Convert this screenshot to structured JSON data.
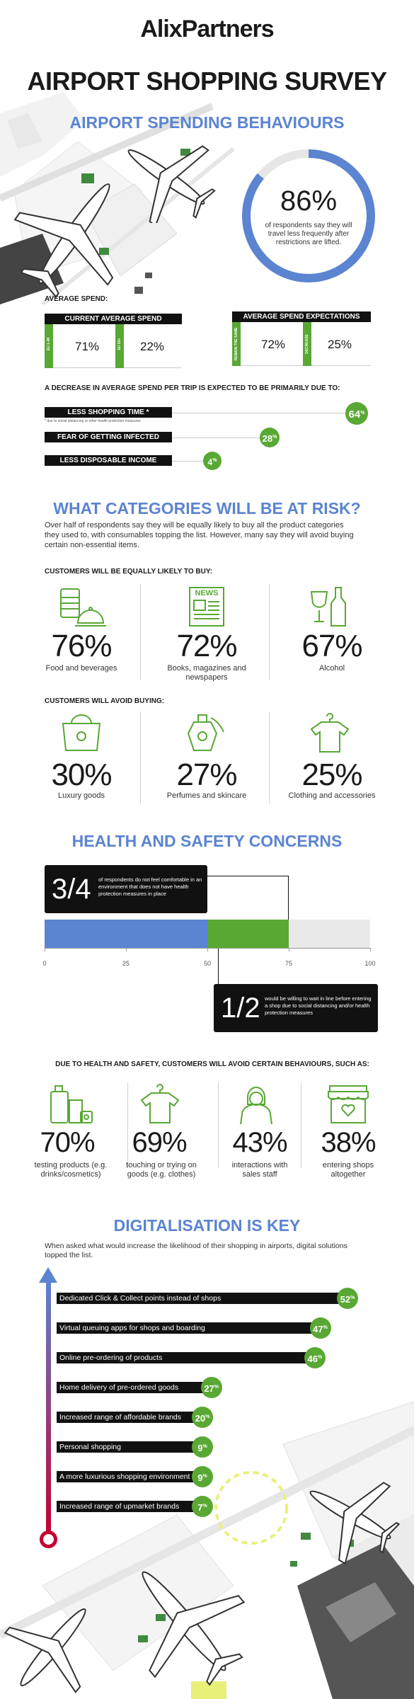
{
  "brand": "AlixPartners",
  "title": "AIRPORT SHOPPING SURVEY",
  "spending": {
    "heading": "AIRPORT SPENDING BEHAVIOURS",
    "circle_pct": "86%",
    "circle_text": "of respondents say they will travel less frequently after restrictions are lifted.",
    "circle_value": 0.86,
    "avg_spend_label": "AVERAGE SPEND:",
    "current_title": "CURRENT AVERAGE SPEND",
    "current_items": [
      {
        "tag": "EU 1-49",
        "value": "71%"
      },
      {
        "tag": "EU 50+",
        "value": "22%"
      }
    ],
    "expect_title": "AVERAGE SPEND EXPECTATIONS",
    "expect_items": [
      {
        "tag": "REMAIN THE SAME",
        "value": "72%"
      },
      {
        "tag": "DECREASE",
        "value": "25%"
      }
    ]
  },
  "decrease": {
    "heading": "A DECREASE IN AVERAGE SPEND PER TRIP IS EXPECTED TO BE PRIMARILY DUE TO:",
    "items": [
      {
        "label": "LESS SHOPPING TIME *",
        "note": "* due to social distancing or other health protection measures",
        "value": "64",
        "unit": "%"
      },
      {
        "label": "FEAR OF GETTING INFECTED",
        "note": "",
        "value": "28",
        "unit": "%"
      },
      {
        "label": "LESS DISPOSABLE INCOME",
        "note": "",
        "value": "4",
        "unit": "%"
      }
    ]
  },
  "categories": {
    "heading": "WHAT CATEGORIES WILL BE AT RISK?",
    "intro": "Over half of respondents say they will be equally likely to buy all the product categories they used to, with consumables topping the list. However, many say they will avoid buying certain non-essential items.",
    "equal_heading": "CUSTOMERS WILL BE EQUALLY LIKELY TO BUY:",
    "equal_items": [
      {
        "pct": "76%",
        "label": "Food and beverages",
        "icon": "food-icon"
      },
      {
        "pct": "72%",
        "label": "Books, magazines and newspapers",
        "icon": "newspaper-icon",
        "icon_text": "NEWS"
      },
      {
        "pct": "67%",
        "label": "Alcohol",
        "icon": "wine-bottle-icon"
      }
    ],
    "avoid_heading": "CUSTOMERS WILL AVOID BUYING:",
    "avoid_items": [
      {
        "pct": "30%",
        "label": "Luxury goods",
        "icon": "handbag-icon"
      },
      {
        "pct": "27%",
        "label": "Perfumes and skincare",
        "icon": "perfume-icon"
      },
      {
        "pct": "25%",
        "label": "Clothing and accessories",
        "icon": "tshirt-icon"
      }
    ]
  },
  "health": {
    "heading": "HEALTH AND SAFETY CONCERNS",
    "box1_big": "3/4",
    "box1_text": "of respondents do not feel comfortable in an environment that does not have health protection measures in place",
    "box2_big": "1/2",
    "box2_text": "would be willing to wait in line before entering a shop due to social distancing and/or health protection measures",
    "bar_blue": 50,
    "bar_green": 75,
    "ticks": [
      "0",
      "25",
      "50",
      "75",
      "100"
    ]
  },
  "behaviours": {
    "heading": "DUE TO HEALTH AND SAFETY, CUSTOMERS WILL AVOID CERTAIN BEHAVIOURS, SUCH AS:",
    "items": [
      {
        "pct": "70%",
        "label": "testing products (e.g. drinks/cosmetics)",
        "icon": "products-icon"
      },
      {
        "pct": "69%",
        "label": "touching or trying on goods (e.g. clothes)",
        "icon": "tshirt-hanger-icon"
      },
      {
        "pct": "43%",
        "label": "interactions with sales staff",
        "icon": "staff-icon"
      },
      {
        "pct": "38%",
        "label": "entering shops altogether",
        "icon": "shop-icon"
      }
    ]
  },
  "digital": {
    "heading": "DIGITALISATION IS KEY",
    "intro": "When asked what would increase the likelihood of their shopping in airports, digital solutions topped the list.",
    "bars": [
      {
        "label": "Dedicated Click & Collect points instead of shops",
        "value": 52
      },
      {
        "label": "Virtual queuing apps for shops and boarding",
        "value": 47
      },
      {
        "label": "Online pre-ordering of products",
        "value": 46
      },
      {
        "label": "Home delivery of pre-ordered goods",
        "value": 27
      },
      {
        "label": "Increased range of affordable brands",
        "value": 20
      },
      {
        "label": "Personal shopping",
        "value": 9
      },
      {
        "label": "A more luxurious shopping environment",
        "value": 9
      },
      {
        "label": "Increased range of upmarket brands",
        "value": 7
      }
    ],
    "unit": "%"
  },
  "colors": {
    "blue": "#5b84d1",
    "green": "#59a834",
    "black": "#111111"
  }
}
